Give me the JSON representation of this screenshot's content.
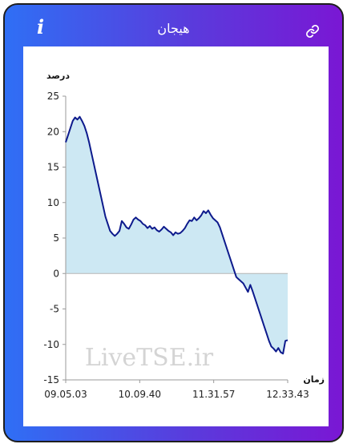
{
  "header": {
    "title": "هیجان",
    "info_icon": "info-icon",
    "link_icon": "link-icon"
  },
  "watermark": "LiveTSE.ir",
  "colors": {
    "line": "#0d1a8c",
    "fill": "#cde8f3",
    "frame_gradient_start": "#2f6ff5",
    "frame_gradient_end": "#7a17d4"
  },
  "chart_data": {
    "type": "area",
    "xlabel": "زمان",
    "ylabel": "درصد",
    "ylim": [
      -15,
      25
    ],
    "yticks": [
      25,
      20,
      15,
      10,
      5,
      0,
      -5,
      -10,
      -15
    ],
    "xtick_labels": [
      "09.05.03",
      "10.09.40",
      "11.31.57",
      "12.33.43"
    ],
    "grid": false,
    "series": [
      {
        "values": [
          18.5,
          19.5,
          20.5,
          21.5,
          22.0,
          21.7,
          22.1,
          21.5,
          20.8,
          19.8,
          18.5,
          17.0,
          15.5,
          14.0,
          12.5,
          11.0,
          9.5,
          8.0,
          7.0,
          6.0,
          5.6,
          5.3,
          5.6,
          6.0,
          7.4,
          7.0,
          6.5,
          6.3,
          6.9,
          7.6,
          7.9,
          7.6,
          7.4,
          7.0,
          6.8,
          6.4,
          6.7,
          6.3,
          6.5,
          6.1,
          5.9,
          6.2,
          6.6,
          6.3,
          6.0,
          5.8,
          5.4,
          5.8,
          5.6,
          5.7,
          6.0,
          6.4,
          7.0,
          7.5,
          7.4,
          7.9,
          7.5,
          7.8,
          8.2,
          8.8,
          8.5,
          8.9,
          8.3,
          7.8,
          7.5,
          7.2,
          6.5,
          5.5,
          4.5,
          3.5,
          2.5,
          1.5,
          0.5,
          -0.5,
          -0.8,
          -1.1,
          -1.4,
          -2.0,
          -2.6,
          -1.6,
          -2.5,
          -3.5,
          -4.5,
          -5.5,
          -6.5,
          -7.5,
          -8.5,
          -9.5,
          -10.3,
          -10.6,
          -11.0,
          -10.5,
          -11.1,
          -11.3,
          -9.5,
          -9.4
        ]
      }
    ]
  }
}
